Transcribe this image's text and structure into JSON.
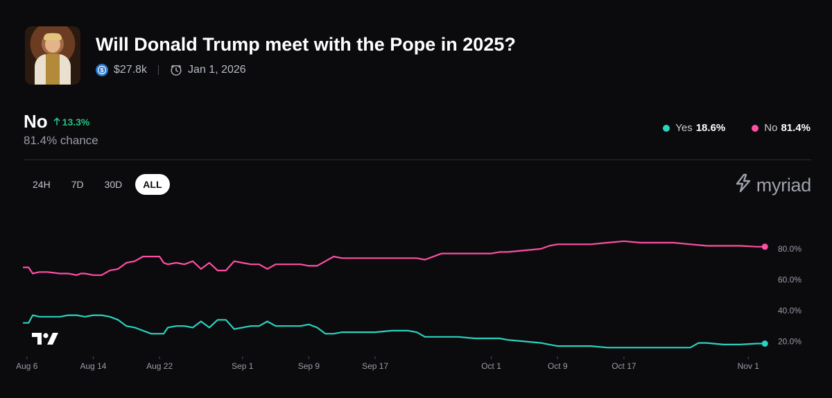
{
  "market": {
    "title": "Will Donald Trump meet with the Pope in 2025?",
    "volume": "$27.8k",
    "end_date": "Jan 1, 2026"
  },
  "outcome": {
    "label": "No",
    "change": "13.3%",
    "chance": "81.4% chance"
  },
  "legend": [
    {
      "name": "Yes",
      "value": "18.6%",
      "color": "#2ad4c0"
    },
    {
      "name": "No",
      "value": "81.4%",
      "color": "#ff4fa3"
    }
  ],
  "ranges": [
    "24H",
    "7D",
    "30D",
    "ALL"
  ],
  "active_range": "ALL",
  "brand": "myriad",
  "chart_data": {
    "type": "line",
    "title": "",
    "xlabel": "",
    "ylabel": "",
    "x_tick_labels": [
      "Aug 6",
      "Aug 14",
      "Aug 22",
      "Sep 1",
      "Sep 9",
      "Sep 17",
      "Oct 1",
      "Oct 9",
      "Oct 17",
      "Nov 1"
    ],
    "x_tick_days": [
      0,
      8,
      16,
      26,
      34,
      42,
      56,
      64,
      72,
      87
    ],
    "y_tick_labels": [
      "20.0%",
      "40.0%",
      "60.0%",
      "80.0%"
    ],
    "y_tick_values": [
      20,
      40,
      60,
      80
    ],
    "ylim": [
      13,
      93
    ],
    "xlim": [
      -0.4,
      89.4
    ],
    "series": [
      {
        "name": "No",
        "color": "#ff4fa3",
        "x": [
          -0.4,
          0.2,
          0.7,
          1.5,
          2.5,
          4,
          5,
          6,
          6.5,
          7,
          8,
          9,
          10,
          11,
          12,
          13,
          14,
          15,
          16,
          16.5,
          17,
          18,
          19,
          20,
          21,
          22,
          23,
          24,
          25,
          26,
          27,
          28,
          29,
          30,
          31,
          32,
          33,
          34,
          35,
          36,
          37,
          38,
          39,
          40,
          42,
          44,
          46,
          47,
          48,
          50,
          52,
          54,
          56,
          57,
          58,
          60,
          62,
          63,
          64,
          66,
          68,
          70,
          72,
          74,
          76,
          78,
          80,
          82,
          84,
          86,
          88,
          89
        ],
        "values": [
          68,
          68,
          64,
          65,
          65,
          64,
          64,
          63,
          64,
          64,
          63,
          63,
          66,
          67,
          71,
          72,
          75,
          75,
          75,
          71,
          70,
          71,
          70,
          72,
          67,
          71,
          66,
          66,
          72,
          71,
          70,
          70,
          67,
          70,
          70,
          70,
          70,
          69,
          69,
          72,
          75,
          74,
          74,
          74,
          74,
          74,
          74,
          74,
          73,
          77,
          77,
          77,
          77,
          78,
          78,
          79,
          80,
          82,
          83,
          83,
          83,
          84,
          85,
          84,
          84,
          84,
          83,
          82,
          82,
          82,
          81.4,
          81.4
        ]
      },
      {
        "name": "Yes",
        "color": "#2ad4c0",
        "x": [
          -0.4,
          0.2,
          0.7,
          1.5,
          2.5,
          4,
          5,
          6,
          7,
          8,
          9,
          10,
          11,
          12,
          13,
          14,
          15,
          16,
          16.5,
          17,
          18,
          19,
          20,
          21,
          22,
          23,
          24,
          25,
          26,
          27,
          28,
          29,
          30,
          31,
          32,
          33,
          34,
          35,
          36,
          37,
          38,
          39,
          40,
          42,
          44,
          46,
          47,
          48,
          50,
          52,
          54,
          56,
          57,
          58,
          60,
          62,
          63,
          64,
          66,
          68,
          70,
          72,
          74,
          76,
          78,
          80,
          81,
          82,
          84,
          86,
          88,
          89
        ],
        "values": [
          32,
          32,
          37,
          36,
          36,
          36,
          37,
          37,
          36,
          37,
          37,
          36,
          34,
          30,
          29,
          27,
          25,
          25,
          25,
          29,
          30,
          30,
          29,
          33,
          29,
          34,
          34,
          28,
          29,
          30,
          30,
          33,
          30,
          30,
          30,
          30,
          31,
          29,
          25,
          25,
          26,
          26,
          26,
          26,
          27,
          27,
          26,
          23,
          23,
          23,
          22,
          22,
          22,
          21,
          20,
          19,
          18,
          17,
          17,
          17,
          16,
          16,
          16,
          16,
          16,
          16,
          19,
          19,
          18,
          18,
          18.6,
          18.6
        ]
      }
    ]
  }
}
